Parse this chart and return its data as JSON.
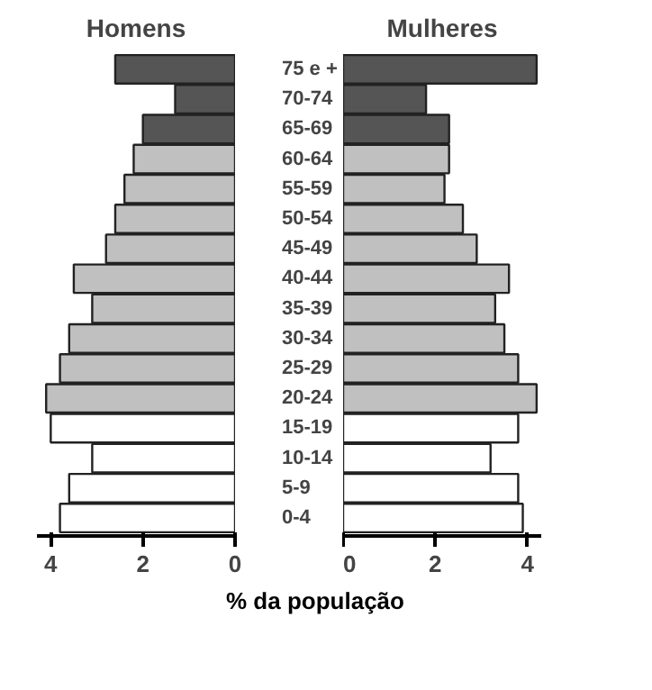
{
  "chart_data": [
    {
      "type": "bar",
      "orientation": "horizontal",
      "title": "Homens",
      "categories": [
        "75 e +",
        "70-74",
        "65-69",
        "60-64",
        "55-59",
        "50-54",
        "45-49",
        "40-44",
        "35-39",
        "30-34",
        "25-29",
        "20-24",
        "15-19",
        "10-14",
        "5-9",
        "0-4"
      ],
      "values": [
        2.6,
        1.3,
        2.0,
        2.2,
        2.4,
        2.6,
        2.8,
        3.5,
        3.1,
        3.6,
        3.8,
        4.1,
        4.0,
        3.1,
        3.6,
        3.8
      ],
      "colors": [
        "#555555",
        "#555555",
        "#555555",
        "#c0c0c0",
        "#c0c0c0",
        "#c0c0c0",
        "#c0c0c0",
        "#c0c0c0",
        "#c0c0c0",
        "#c0c0c0",
        "#c0c0c0",
        "#c0c0c0",
        "#ffffff",
        "#ffffff",
        "#ffffff",
        "#ffffff"
      ],
      "xlim": [
        4.3,
        0
      ],
      "xticks": [
        4,
        2,
        0
      ],
      "grid": false
    },
    {
      "type": "bar",
      "orientation": "horizontal",
      "title": "Mulheres",
      "xlabel": "% da população",
      "values": [
        4.2,
        1.8,
        2.3,
        2.3,
        2.2,
        2.6,
        2.9,
        3.6,
        3.3,
        3.5,
        3.8,
        4.2,
        3.8,
        3.2,
        3.8,
        3.9
      ],
      "colors": [
        "#555555",
        "#555555",
        "#555555",
        "#c0c0c0",
        "#c0c0c0",
        "#c0c0c0",
        "#c0c0c0",
        "#c0c0c0",
        "#c0c0c0",
        "#c0c0c0",
        "#c0c0c0",
        "#c0c0c0",
        "#ffffff",
        "#ffffff",
        "#ffffff",
        "#ffffff"
      ],
      "xlim": [
        0,
        4.3
      ],
      "xticks": [
        0,
        2,
        4
      ],
      "grid": false
    }
  ]
}
